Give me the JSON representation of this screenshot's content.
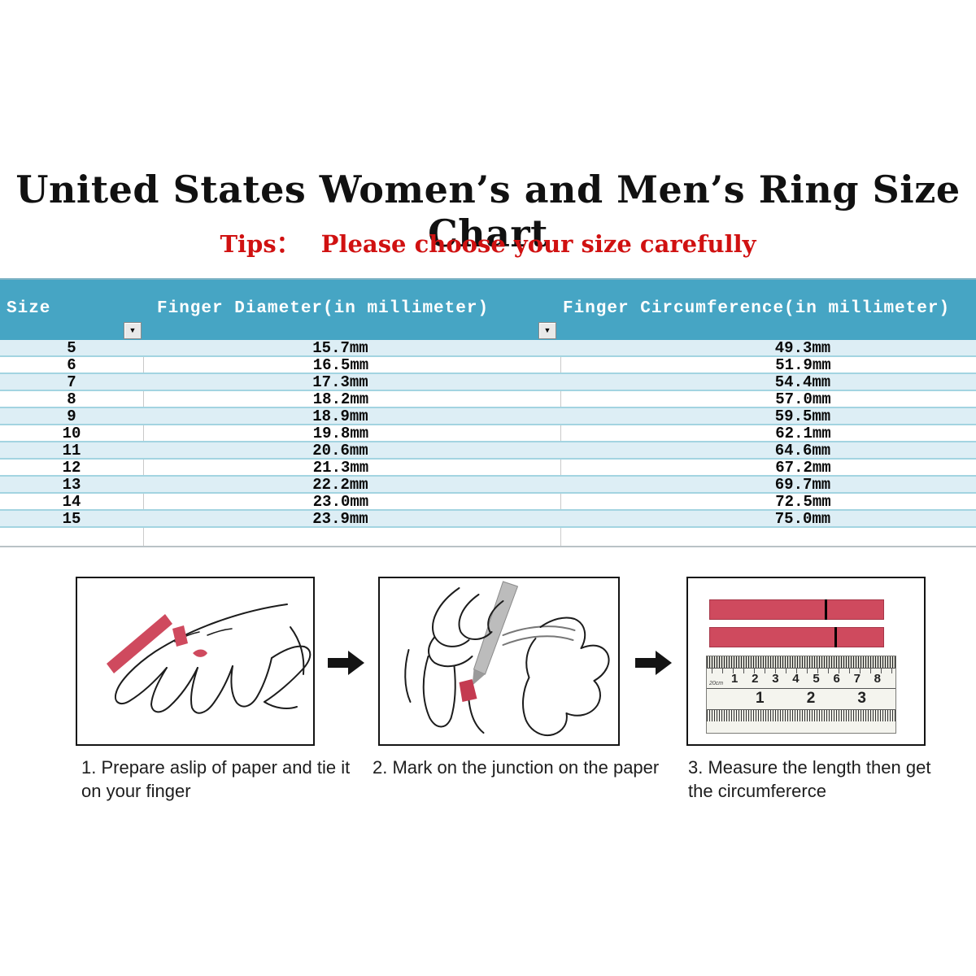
{
  "title": "United States Women’s and Men’s Ring Size Chart",
  "tips": {
    "label": "Tips：",
    "text": "Please choose your size carefully"
  },
  "table": {
    "columns": [
      "Size",
      "Finger Diameter(in millimeter)",
      "Finger Circumference(in millimeter)"
    ],
    "rows": [
      [
        "5",
        "15.7mm",
        "49.3mm"
      ],
      [
        "6",
        "16.5mm",
        "51.9mm"
      ],
      [
        "7",
        "17.3mm",
        "54.4mm"
      ],
      [
        "8",
        "18.2mm",
        "57.0mm"
      ],
      [
        "9",
        "18.9mm",
        "59.5mm"
      ],
      [
        "10",
        "19.8mm",
        "62.1mm"
      ],
      [
        "11",
        "20.6mm",
        "64.6mm"
      ],
      [
        "12",
        "21.3mm",
        "67.2mm"
      ],
      [
        "13",
        "22.2mm",
        "69.7mm"
      ],
      [
        "14",
        "23.0mm",
        "72.5mm"
      ],
      [
        "15",
        "23.9mm",
        "75.0mm"
      ]
    ]
  },
  "chart_data": {
    "type": "table",
    "title": "United States Women’s and Men’s Ring Size Chart",
    "columns": [
      "Size",
      "Finger Diameter(in millimeter)",
      "Finger Circumference(in millimeter)"
    ],
    "rows": [
      [
        "5",
        "15.7mm",
        "49.3mm"
      ],
      [
        "6",
        "16.5mm",
        "51.9mm"
      ],
      [
        "7",
        "17.3mm",
        "54.4mm"
      ],
      [
        "8",
        "18.2mm",
        "57.0mm"
      ],
      [
        "9",
        "18.9mm",
        "59.5mm"
      ],
      [
        "10",
        "19.8mm",
        "62.1mm"
      ],
      [
        "11",
        "20.6mm",
        "64.6mm"
      ],
      [
        "12",
        "21.3mm",
        "67.2mm"
      ],
      [
        "13",
        "22.2mm",
        "69.7mm"
      ],
      [
        "14",
        "23.0mm",
        "72.5mm"
      ],
      [
        "15",
        "23.9mm",
        "75.0mm"
      ]
    ]
  },
  "steps": [
    {
      "caption": "1. Prepare aslip of paper and tie it on your finger",
      "illustration": "hand-with-paper-strip"
    },
    {
      "caption": "2. Mark on the junction on the paper",
      "illustration": "pen-marking-junction"
    },
    {
      "caption": "3. Measure the length then get the circumfererce",
      "illustration": "ruler-measuring-strips"
    }
  ],
  "ruler": {
    "cm_label": "20cm",
    "cm_numbers": [
      "1",
      "2",
      "3",
      "4",
      "5",
      "6",
      "7",
      "8"
    ],
    "inch_numbers": [
      "1",
      "2",
      "3"
    ]
  },
  "icons": {
    "dropdown_arrow": "▼"
  },
  "colors": {
    "header_teal": "#46a5c4",
    "row_light_blue": "#ddeef5",
    "row_separator": "#a3d4e1",
    "tips_red": "#d01111",
    "strip_red": "#cf4a5e",
    "arrow_black": "#141414"
  }
}
